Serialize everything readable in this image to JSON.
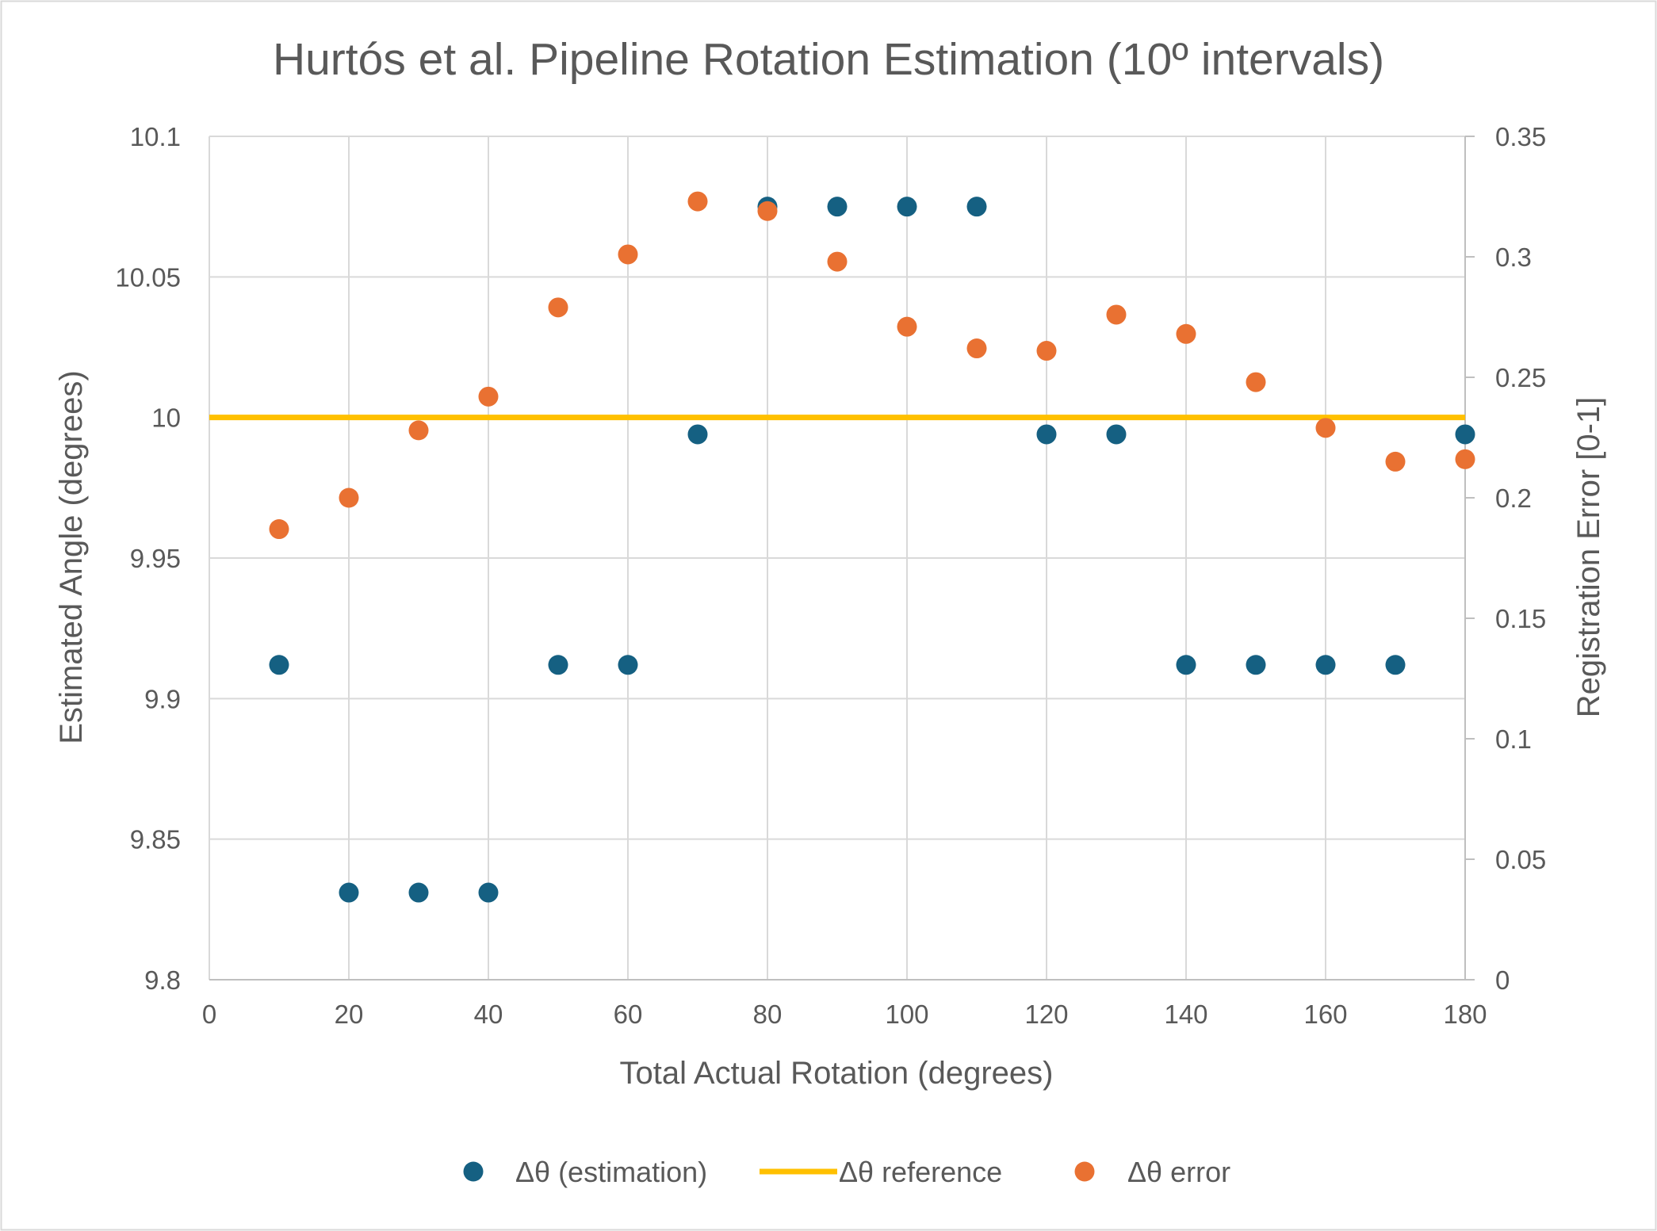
{
  "chart_data": {
    "type": "scatter",
    "title": "Hurtós et al. Pipeline Rotation Estimation (10º intervals)",
    "xlabel": "Total Actual Rotation (degrees)",
    "ylabel_left": "Estimated Angle (degrees)",
    "ylabel_right": "Registration Error [0-1]",
    "xlim": [
      0,
      180
    ],
    "ylim_left": [
      9.8,
      10.1
    ],
    "ylim_right": [
      0,
      0.35
    ],
    "x_ticks": [
      0,
      20,
      40,
      60,
      80,
      100,
      120,
      140,
      160,
      180
    ],
    "y_left_ticks": [
      "9.8",
      "9.85",
      "9.9",
      "9.95",
      "10",
      "10.05",
      "10.1"
    ],
    "y_right_ticks": [
      "0",
      "0.05",
      "0.1",
      "0.15",
      "0.2",
      "0.25",
      "0.3",
      "0.35"
    ],
    "grid": true,
    "legend_position": "bottom",
    "series": [
      {
        "name": "Δθ (estimation)",
        "axis": "left",
        "mark": "point",
        "color": "#156082",
        "x": [
          10,
          20,
          30,
          40,
          50,
          60,
          70,
          80,
          90,
          100,
          110,
          120,
          130,
          140,
          150,
          160,
          170,
          180
        ],
        "y": [
          9.912,
          9.831,
          9.831,
          9.831,
          9.912,
          9.912,
          9.994,
          10.075,
          10.075,
          10.075,
          10.075,
          9.994,
          9.994,
          9.912,
          9.912,
          9.912,
          9.912,
          9.994
        ]
      },
      {
        "name": "Δθ reference",
        "axis": "left",
        "mark": "line",
        "color": "#FFC000",
        "x": [
          0,
          180
        ],
        "y": [
          10,
          10
        ]
      },
      {
        "name": "Δθ error",
        "axis": "right",
        "mark": "point",
        "color": "#E97132",
        "x": [
          10,
          20,
          30,
          40,
          50,
          60,
          70,
          80,
          90,
          100,
          110,
          120,
          130,
          140,
          150,
          160,
          170,
          180
        ],
        "y": [
          0.187,
          0.2,
          0.228,
          0.242,
          0.279,
          0.301,
          0.323,
          0.319,
          0.298,
          0.271,
          0.262,
          0.261,
          0.276,
          0.268,
          0.248,
          0.229,
          0.215,
          0.216
        ]
      }
    ]
  }
}
